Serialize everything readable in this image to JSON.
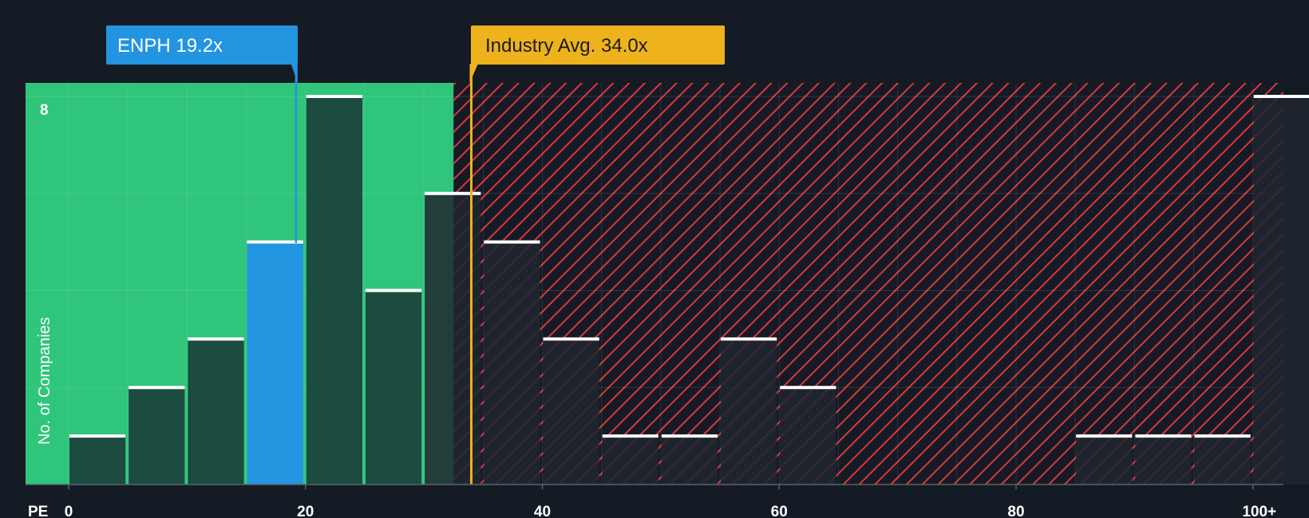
{
  "chart_data": {
    "type": "bar",
    "xlabel": "PE",
    "ylabel": "No. of Companies",
    "x_ticks": [
      "0",
      "20",
      "40",
      "60",
      "80",
      "100+"
    ],
    "y_ticks": [
      "8"
    ],
    "ylim": [
      0,
      8
    ],
    "bin_width": 5,
    "bins": [
      {
        "start": 0,
        "count": 1
      },
      {
        "start": 5,
        "count": 2
      },
      {
        "start": 10,
        "count": 3
      },
      {
        "start": 15,
        "count": 5
      },
      {
        "start": 20,
        "count": 8
      },
      {
        "start": 25,
        "count": 4
      },
      {
        "start": 30,
        "count": 6
      },
      {
        "start": 35,
        "count": 5
      },
      {
        "start": 40,
        "count": 3
      },
      {
        "start": 45,
        "count": 1
      },
      {
        "start": 50,
        "count": 1
      },
      {
        "start": 55,
        "count": 3
      },
      {
        "start": 60,
        "count": 2
      },
      {
        "start": 65,
        "count": 0
      },
      {
        "start": 70,
        "count": 0
      },
      {
        "start": 75,
        "count": 0
      },
      {
        "start": 80,
        "count": 0
      },
      {
        "start": 85,
        "count": 1
      },
      {
        "start": 90,
        "count": 1
      },
      {
        "start": 95,
        "count": 1
      },
      {
        "start": 100,
        "count": 8
      }
    ],
    "company": {
      "label": "ENPH 19.2x",
      "value": 19.2,
      "color": "#2394e0"
    },
    "industry": {
      "label": "Industry Avg. 34.0x",
      "value": 34.0,
      "color": "#eeb21c"
    },
    "fair_zone_end": 32.5,
    "colors": {
      "background": "#151b24",
      "fair_zone": "#2fc57a",
      "bar_in_zone": "#1c4b40",
      "bar_out_zone": "#1f2630",
      "hatch": "#d8383a",
      "highlight_bar": "#2394e0",
      "bar_cap": "#ffffff"
    }
  }
}
